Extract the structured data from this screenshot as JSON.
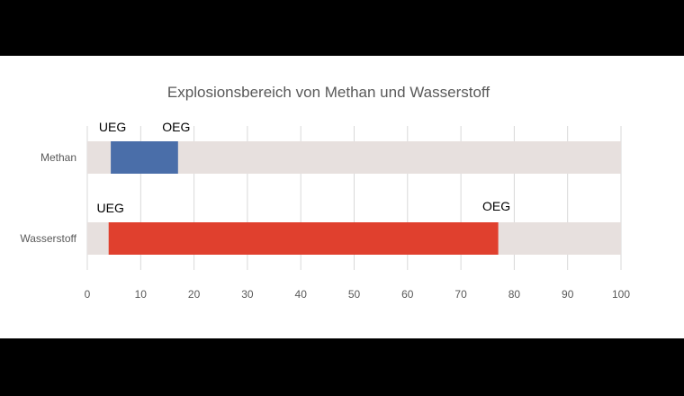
{
  "chart_data": {
    "type": "bar",
    "orientation": "horizontal",
    "stacked_range": true,
    "title": "Explosionsbereich von Methan und Wasserstoff",
    "xlabel": "",
    "ylabel": "",
    "xlim": [
      0,
      100
    ],
    "x_ticks": [
      "0",
      "10",
      "20",
      "30",
      "40",
      "50",
      "60",
      "70",
      "80",
      "90",
      "100"
    ],
    "grid": true,
    "legend": "none",
    "categories": [
      "Methan",
      "Wasserstoff"
    ],
    "ranges": [
      {
        "category": "Methan",
        "start": 4.4,
        "end": 17,
        "color": "#4a6ea9",
        "start_label": "UEG",
        "end_label": "OEG"
      },
      {
        "category": "Wasserstoff",
        "start": 4,
        "end": 77,
        "color": "#e0402e",
        "start_label": "UEG",
        "end_label": "OEG"
      }
    ],
    "background_range": [
      0,
      100
    ],
    "background_color": "#e7e0de"
  }
}
